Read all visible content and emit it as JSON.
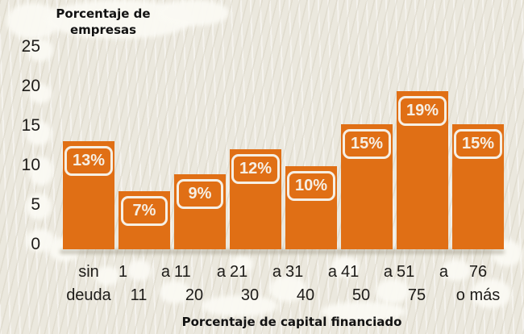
{
  "chart_data": {
    "type": "bar",
    "ylabel": "Porcentaje de\nempresas",
    "xlabel": "Porcentaje de capital financiado",
    "y_ticks": [
      25,
      20,
      15,
      10,
      5,
      0
    ],
    "ylim": [
      0,
      25
    ],
    "grid": false,
    "legend_position": "none",
    "categories": [
      "sin deuda",
      "1 a 11",
      "11 a 20",
      "21 a 30",
      "31 a 40",
      "41 a 50",
      "51 a 75",
      "76 o más"
    ],
    "category_lines": [
      {
        "top": [
          "sin"
        ],
        "bottom": "deuda"
      },
      {
        "top": [
          "1",
          "a"
        ],
        "bottom": "11"
      },
      {
        "top": [
          "11",
          "a"
        ],
        "bottom": "20"
      },
      {
        "top": [
          "21",
          "a"
        ],
        "bottom": "30"
      },
      {
        "top": [
          "31",
          "a"
        ],
        "bottom": "40"
      },
      {
        "top": [
          "41",
          "a"
        ],
        "bottom": "50"
      },
      {
        "top": [
          "51",
          "a"
        ],
        "bottom": "75"
      },
      {
        "top": [
          "76"
        ],
        "bottom": "o más"
      }
    ],
    "values": [
      13,
      7,
      9,
      12,
      10,
      15,
      19,
      15
    ],
    "bar_labels": [
      "13%",
      "7%",
      "9%",
      "12%",
      "10%",
      "15%",
      "19%",
      "15%"
    ],
    "colors": {
      "bar": "#e06f15",
      "bar_label_text": "#f6efe4",
      "bar_label_border": "#f6efe4",
      "axis_text": "#1d1b18",
      "title_text": "#121212",
      "background": "#ebe8de",
      "cloud": "#fbfaf4"
    }
  }
}
